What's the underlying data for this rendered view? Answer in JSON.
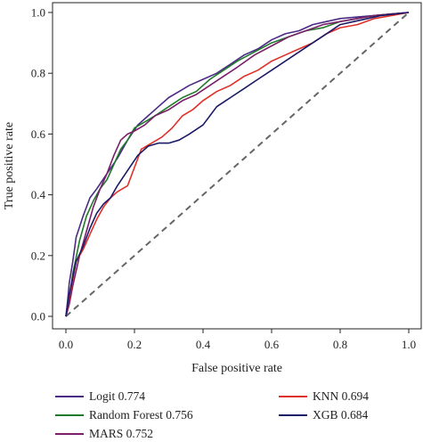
{
  "chart_data": {
    "type": "line",
    "title": "",
    "xlabel": "False positive rate",
    "ylabel": "True positive rate",
    "xlim": [
      0,
      1
    ],
    "ylim": [
      0,
      1
    ],
    "xticks": [
      "0.0",
      "0.2",
      "0.4",
      "0.6",
      "0.8",
      "1.0"
    ],
    "yticks": [
      "0.0",
      "0.2",
      "0.4",
      "0.6",
      "0.8",
      "1.0"
    ],
    "grid": false,
    "legend_position": "bottom",
    "reference_line": {
      "style": "dashed",
      "color": "#666666",
      "points": [
        [
          0,
          0
        ],
        [
          1,
          1
        ]
      ]
    },
    "series": [
      {
        "name": "Logit 0.774",
        "color": "#4b2a86",
        "x": [
          0,
          0.005,
          0.01,
          0.02,
          0.03,
          0.05,
          0.07,
          0.09,
          0.12,
          0.15,
          0.18,
          0.21,
          0.24,
          0.27,
          0.3,
          0.33,
          0.36,
          0.4,
          0.44,
          0.48,
          0.52,
          0.56,
          0.6,
          0.64,
          0.68,
          0.72,
          0.76,
          0.8,
          0.85,
          0.9,
          0.95,
          1.0
        ],
        "y": [
          0,
          0.05,
          0.11,
          0.18,
          0.26,
          0.33,
          0.39,
          0.42,
          0.47,
          0.52,
          0.58,
          0.63,
          0.66,
          0.69,
          0.72,
          0.74,
          0.76,
          0.78,
          0.8,
          0.83,
          0.86,
          0.88,
          0.91,
          0.93,
          0.94,
          0.96,
          0.97,
          0.98,
          0.985,
          0.99,
          0.995,
          1.0
        ]
      },
      {
        "name": "Random Forest 0.756",
        "color": "#1f7a2a",
        "x": [
          0,
          0.01,
          0.02,
          0.04,
          0.06,
          0.08,
          0.1,
          0.12,
          0.14,
          0.16,
          0.18,
          0.2,
          0.23,
          0.26,
          0.3,
          0.34,
          0.38,
          0.42,
          0.46,
          0.5,
          0.55,
          0.6,
          0.65,
          0.7,
          0.75,
          0.8,
          0.85,
          0.9,
          0.95,
          1.0
        ],
        "y": [
          0,
          0.05,
          0.14,
          0.25,
          0.33,
          0.38,
          0.42,
          0.45,
          0.5,
          0.55,
          0.58,
          0.62,
          0.64,
          0.66,
          0.69,
          0.72,
          0.74,
          0.78,
          0.81,
          0.84,
          0.87,
          0.9,
          0.92,
          0.94,
          0.95,
          0.97,
          0.98,
          0.99,
          0.995,
          1.0
        ]
      },
      {
        "name": "MARS 0.752",
        "color": "#7b1f6a",
        "x": [
          0,
          0.01,
          0.02,
          0.04,
          0.06,
          0.08,
          0.1,
          0.12,
          0.14,
          0.16,
          0.18,
          0.2,
          0.23,
          0.26,
          0.3,
          0.34,
          0.38,
          0.42,
          0.46,
          0.5,
          0.55,
          0.6,
          0.65,
          0.7,
          0.75,
          0.8,
          0.85,
          0.9,
          0.95,
          1.0
        ],
        "y": [
          0,
          0.04,
          0.1,
          0.2,
          0.28,
          0.36,
          0.42,
          0.47,
          0.53,
          0.58,
          0.6,
          0.61,
          0.63,
          0.66,
          0.68,
          0.71,
          0.73,
          0.76,
          0.79,
          0.82,
          0.86,
          0.89,
          0.92,
          0.94,
          0.96,
          0.97,
          0.98,
          0.99,
          0.995,
          1.0
        ]
      },
      {
        "name": "KNN 0.694",
        "color": "#e0302a",
        "x": [
          0,
          0.01,
          0.02,
          0.03,
          0.05,
          0.07,
          0.09,
          0.11,
          0.13,
          0.15,
          0.18,
          0.2,
          0.22,
          0.25,
          0.28,
          0.31,
          0.34,
          0.37,
          0.4,
          0.44,
          0.48,
          0.52,
          0.56,
          0.6,
          0.64,
          0.68,
          0.72,
          0.76,
          0.8,
          0.85,
          0.9,
          0.95,
          1.0
        ],
        "y": [
          0,
          0.06,
          0.12,
          0.18,
          0.22,
          0.27,
          0.32,
          0.36,
          0.39,
          0.41,
          0.43,
          0.49,
          0.55,
          0.57,
          0.59,
          0.62,
          0.66,
          0.68,
          0.71,
          0.74,
          0.76,
          0.79,
          0.81,
          0.84,
          0.86,
          0.88,
          0.9,
          0.93,
          0.95,
          0.96,
          0.98,
          0.99,
          1.0
        ]
      },
      {
        "name": "XGB 0.684",
        "color": "#1a1a66",
        "x": [
          0,
          0.01,
          0.02,
          0.03,
          0.05,
          0.07,
          0.09,
          0.11,
          0.13,
          0.15,
          0.18,
          0.21,
          0.24,
          0.27,
          0.3,
          0.33,
          0.36,
          0.4,
          0.44,
          0.48,
          0.52,
          0.56,
          0.6,
          0.64,
          0.68,
          0.72,
          0.76,
          0.8,
          0.84,
          0.88,
          0.92,
          0.96,
          1.0
        ],
        "y": [
          0,
          0.07,
          0.13,
          0.18,
          0.23,
          0.29,
          0.34,
          0.37,
          0.39,
          0.43,
          0.48,
          0.53,
          0.56,
          0.57,
          0.57,
          0.58,
          0.6,
          0.63,
          0.69,
          0.72,
          0.75,
          0.78,
          0.81,
          0.84,
          0.87,
          0.9,
          0.93,
          0.96,
          0.97,
          0.98,
          0.99,
          0.995,
          1.0
        ]
      }
    ]
  }
}
